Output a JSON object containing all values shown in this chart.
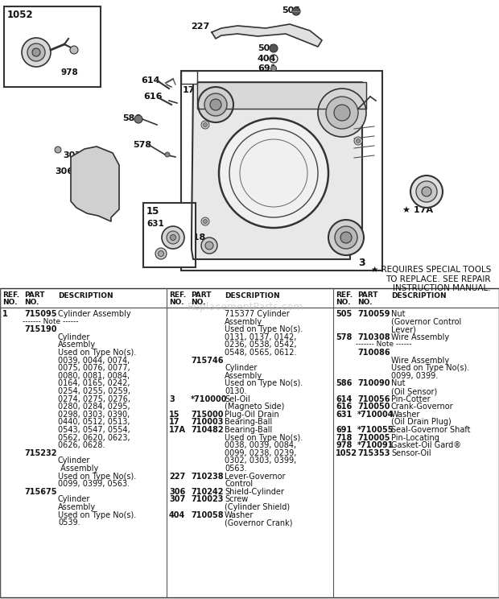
{
  "bg_color": "#ffffff",
  "text_color": "#111111",
  "special_note": "★ REQUIRES SPECIAL TOOLS\nTO REPLACE. SEE REPAIR\nINSTRUCTION MANUAL.",
  "watermark": "ReplacementParts.com",
  "col1_lines": [
    [
      "1",
      "715095",
      "Cylinder Assembly"
    ],
    [
      "",
      "dotted",
      "------- Note ------"
    ],
    [
      "",
      "bold",
      "715190"
    ],
    [
      "",
      "",
      "Cylinder"
    ],
    [
      "",
      "",
      "Assembly"
    ],
    [
      "",
      "",
      "Used on Type No(s)."
    ],
    [
      "",
      "",
      "0039, 0044, 0074,"
    ],
    [
      "",
      "",
      "0075, 0076, 0077,"
    ],
    [
      "",
      "",
      "0080, 0081, 0084,"
    ],
    [
      "",
      "",
      "0164, 0165, 0242,"
    ],
    [
      "",
      "",
      "0254, 0255, 0259,"
    ],
    [
      "",
      "",
      "0274, 0275, 0276,"
    ],
    [
      "",
      "",
      "0280, 0284, 0295,"
    ],
    [
      "",
      "",
      "0298, 0303, 0390,"
    ],
    [
      "",
      "",
      "0440, 0512, 0513,"
    ],
    [
      "",
      "",
      "0543, 0547, 0554,"
    ],
    [
      "",
      "",
      "0562, 0620, 0623,"
    ],
    [
      "",
      "",
      "0626, 0628."
    ],
    [
      "",
      "bold",
      "715232"
    ],
    [
      "",
      "",
      "Cylinder"
    ],
    [
      "",
      "",
      " Assembly"
    ],
    [
      "",
      "",
      "Used on Type No(s)."
    ],
    [
      "",
      "",
      "0099, 0399, 0563."
    ],
    [
      "",
      "bold",
      "715675"
    ],
    [
      "",
      "",
      "Cylinder"
    ],
    [
      "",
      "",
      "Assembly"
    ],
    [
      "",
      "",
      "Used on Type No(s)."
    ],
    [
      "",
      "",
      "0539."
    ]
  ],
  "col2_lines": [
    [
      "",
      "",
      "715377 Cylinder"
    ],
    [
      "",
      "",
      "Assembly"
    ],
    [
      "",
      "",
      "Used on Type No(s)."
    ],
    [
      "",
      "",
      "0131, 0137, 0142,"
    ],
    [
      "",
      "",
      "0236, 0538, 0542,"
    ],
    [
      "",
      "",
      "0548, 0565, 0612."
    ],
    [
      "",
      "bold",
      "715746"
    ],
    [
      "",
      "",
      "Cylinder"
    ],
    [
      "",
      "",
      "Assembly"
    ],
    [
      "",
      "",
      "Used on Type No(s)."
    ],
    [
      "",
      "",
      "0130."
    ],
    [
      "3",
      "*710000",
      "Sel-Oil"
    ],
    [
      "",
      "",
      "(Magneto Side)"
    ],
    [
      "15",
      "715000",
      "Plug-Oil Drain"
    ],
    [
      "17",
      "710003",
      "Bearing-Ball"
    ],
    [
      "17A",
      "710482",
      "Bearing-Ball"
    ],
    [
      "",
      "",
      "Used on Type No(s)."
    ],
    [
      "",
      "",
      "0038, 0039, 0084,"
    ],
    [
      "",
      "",
      "0099, 0238, 0239,"
    ],
    [
      "",
      "",
      "0302, 0303, 0399,"
    ],
    [
      "",
      "",
      "0563."
    ],
    [
      "227",
      "710238",
      "Lever-Governor"
    ],
    [
      "",
      "",
      "Control"
    ],
    [
      "306",
      "710242",
      "Shield-Cylinder"
    ],
    [
      "307",
      "710023",
      "Screw"
    ],
    [
      "",
      "",
      "(Cylinder Shield)"
    ],
    [
      "404",
      "710058",
      "Washer"
    ],
    [
      "",
      "",
      "(Governor Crank)"
    ]
  ],
  "col3_lines": [
    [
      "505",
      "710059",
      "Nut"
    ],
    [
      "",
      "",
      "(Governor Control"
    ],
    [
      "",
      "",
      "Lever)"
    ],
    [
      "578",
      "710308",
      "Wire Assembly"
    ],
    [
      "",
      "dotted",
      "------- Note ------"
    ],
    [
      "",
      "bold",
      "710086"
    ],
    [
      "",
      "",
      "Wire Assembly"
    ],
    [
      "",
      "",
      "Used on Type No(s)."
    ],
    [
      "",
      "",
      "0099, 0399."
    ],
    [
      "586",
      "710090",
      "Nut"
    ],
    [
      "",
      "",
      "(Oil Sensor)"
    ],
    [
      "614",
      "710056",
      "Pin-Cotter"
    ],
    [
      "616",
      "710050",
      "Crank-Governor"
    ],
    [
      "631",
      "*710004",
      "Washer"
    ],
    [
      "",
      "",
      "(Oil Drain Plug)"
    ],
    [
      "691",
      "*710055",
      "Seal-Governor Shaft"
    ],
    [
      "718",
      "710005",
      "Pin-Locating"
    ],
    [
      "978",
      "*710091",
      "Gasket-Oil Gard®"
    ],
    [
      "1052",
      "715353",
      "Sensor-Oil"
    ]
  ]
}
